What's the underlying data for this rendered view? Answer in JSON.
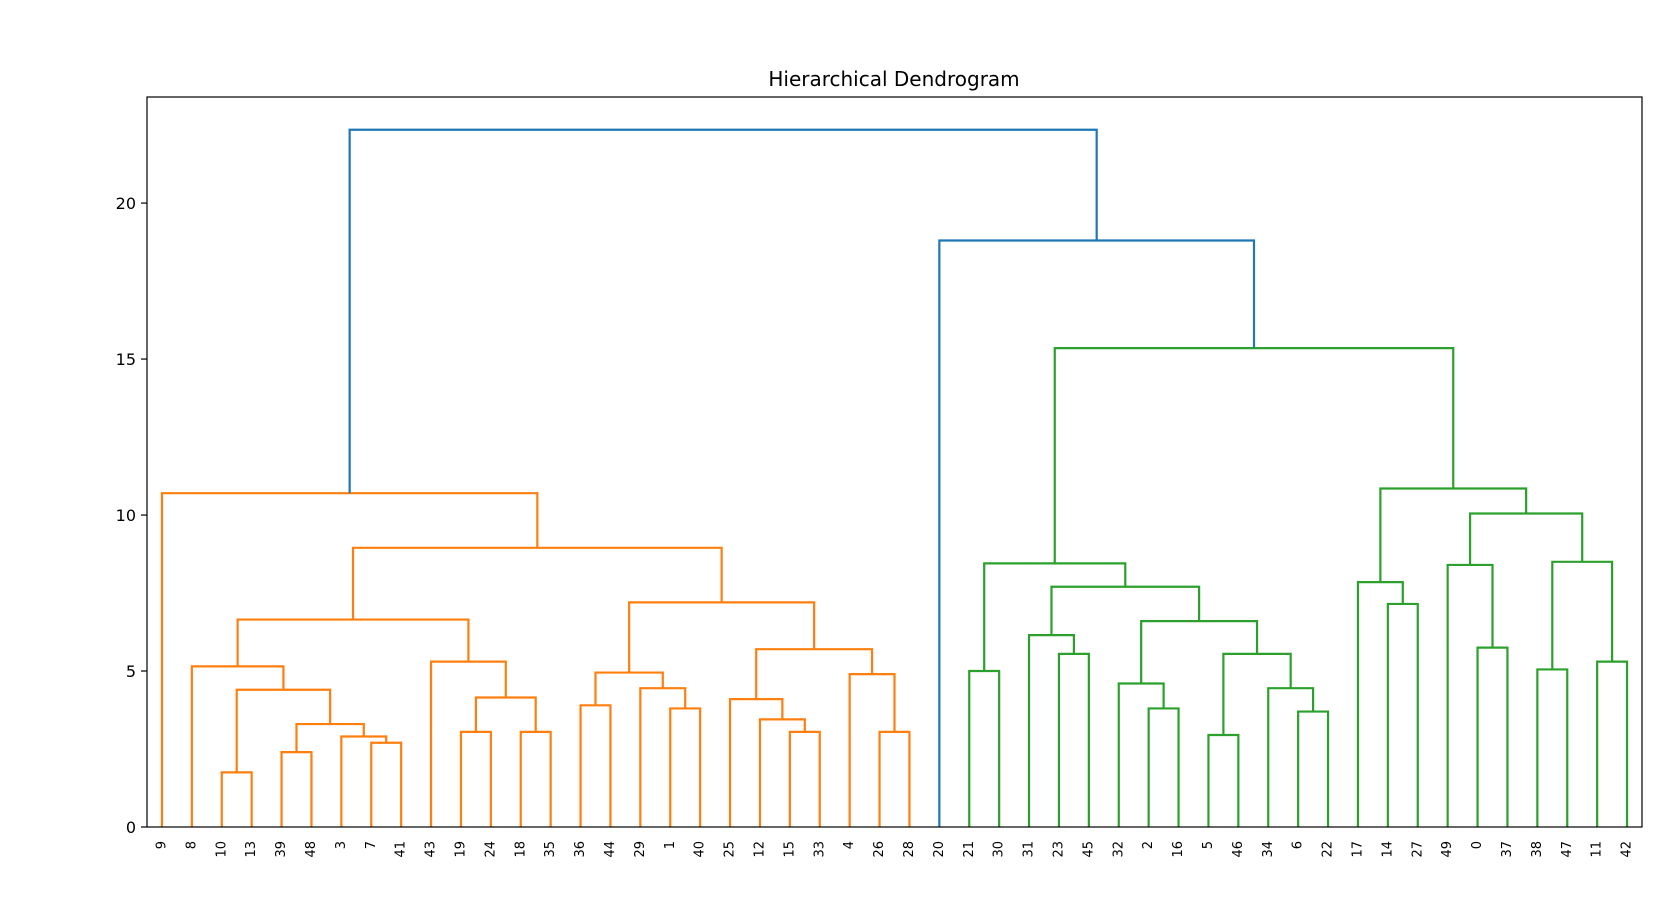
{
  "chart_data": {
    "type": "dendrogram",
    "title": "Hierarchical Dendrogram",
    "xlabel": "",
    "ylabel": "",
    "ylim": [
      0,
      23.4
    ],
    "yticks": [
      0,
      5,
      10,
      15,
      20
    ],
    "grid": false,
    "leaves": [
      "9",
      "8",
      "10",
      "13",
      "39",
      "48",
      "3",
      "7",
      "41",
      "43",
      "19",
      "24",
      "18",
      "35",
      "36",
      "44",
      "29",
      "1",
      "40",
      "25",
      "12",
      "15",
      "33",
      "4",
      "26",
      "28",
      "20",
      "21",
      "30",
      "31",
      "23",
      "45",
      "32",
      "2",
      "16",
      "5",
      "46",
      "34",
      "6",
      "22",
      "17",
      "14",
      "27",
      "49",
      "0",
      "37",
      "38",
      "47",
      "11",
      "42"
    ],
    "colors": {
      "orange": "#ff7f0e",
      "green": "#2ca02c",
      "blue": "#1f77b4"
    },
    "links": [
      {
        "a": "L:10",
        "b": "L:13",
        "h": 1.75,
        "c": "orange"
      },
      {
        "a": "L:39",
        "b": "L:48",
        "h": 2.4,
        "c": "orange"
      },
      {
        "a": "L:7",
        "b": "L:41",
        "h": 2.7,
        "c": "orange"
      },
      {
        "a": "L:3",
        "b": "N:2",
        "h": 2.9,
        "c": "orange"
      },
      {
        "a": "N:1",
        "b": "N:3",
        "h": 3.3,
        "c": "orange"
      },
      {
        "a": "N:0",
        "b": "N:4",
        "h": 4.4,
        "c": "orange"
      },
      {
        "a": "L:8",
        "b": "N:5",
        "h": 5.15,
        "c": "orange"
      },
      {
        "a": "L:19",
        "b": "L:24",
        "h": 3.05,
        "c": "orange"
      },
      {
        "a": "L:18",
        "b": "L:35",
        "h": 3.05,
        "c": "orange"
      },
      {
        "a": "N:7",
        "b": "N:8",
        "h": 4.15,
        "c": "orange"
      },
      {
        "a": "L:43",
        "b": "N:9",
        "h": 5.3,
        "c": "orange"
      },
      {
        "a": "N:6",
        "b": "N:10",
        "h": 6.65,
        "c": "orange"
      },
      {
        "a": "L:36",
        "b": "L:44",
        "h": 3.9,
        "c": "orange"
      },
      {
        "a": "L:1",
        "b": "L:40",
        "h": 3.8,
        "c": "orange"
      },
      {
        "a": "L:29",
        "b": "N:13",
        "h": 4.45,
        "c": "orange"
      },
      {
        "a": "N:12",
        "b": "N:14",
        "h": 4.95,
        "c": "orange"
      },
      {
        "a": "L:15",
        "b": "L:33",
        "h": 3.05,
        "c": "orange"
      },
      {
        "a": "L:12",
        "b": "N:16",
        "h": 3.45,
        "c": "orange"
      },
      {
        "a": "L:25",
        "b": "N:17",
        "h": 4.1,
        "c": "orange"
      },
      {
        "a": "L:26",
        "b": "L:28",
        "h": 3.05,
        "c": "orange"
      },
      {
        "a": "L:4",
        "b": "N:19",
        "h": 4.9,
        "c": "orange"
      },
      {
        "a": "N:18",
        "b": "N:20",
        "h": 5.7,
        "c": "orange"
      },
      {
        "a": "N:15",
        "b": "N:21",
        "h": 7.2,
        "c": "orange"
      },
      {
        "a": "N:11",
        "b": "N:22",
        "h": 8.95,
        "c": "orange"
      },
      {
        "a": "L:9",
        "b": "N:23",
        "h": 10.7,
        "c": "orange"
      },
      {
        "a": "L:21",
        "b": "L:30",
        "h": 5.0,
        "c": "green"
      },
      {
        "a": "L:23",
        "b": "L:45",
        "h": 5.55,
        "c": "green"
      },
      {
        "a": "L:31",
        "b": "N:26",
        "h": 6.15,
        "c": "green"
      },
      {
        "a": "L:2",
        "b": "L:16",
        "h": 3.8,
        "c": "green"
      },
      {
        "a": "L:32",
        "b": "N:28",
        "h": 4.6,
        "c": "green"
      },
      {
        "a": "L:5",
        "b": "L:46",
        "h": 2.95,
        "c": "green"
      },
      {
        "a": "L:6",
        "b": "L:22",
        "h": 3.7,
        "c": "green"
      },
      {
        "a": "L:34",
        "b": "N:31",
        "h": 4.45,
        "c": "green"
      },
      {
        "a": "N:30",
        "b": "N:32",
        "h": 5.55,
        "c": "green"
      },
      {
        "a": "N:29",
        "b": "N:33",
        "h": 6.6,
        "c": "green"
      },
      {
        "a": "N:27",
        "b": "N:34",
        "h": 7.7,
        "c": "green"
      },
      {
        "a": "N:25",
        "b": "N:35",
        "h": 8.45,
        "c": "green"
      },
      {
        "a": "L:14",
        "b": "L:27",
        "h": 7.15,
        "c": "green"
      },
      {
        "a": "L:17",
        "b": "N:37",
        "h": 7.85,
        "c": "green"
      },
      {
        "a": "L:0",
        "b": "L:37",
        "h": 5.75,
        "c": "green"
      },
      {
        "a": "L:49",
        "b": "N:39",
        "h": 8.4,
        "c": "green"
      },
      {
        "a": "L:38",
        "b": "L:47",
        "h": 5.05,
        "c": "green"
      },
      {
        "a": "L:11",
        "b": "L:42",
        "h": 5.3,
        "c": "green"
      },
      {
        "a": "N:41",
        "b": "N:42",
        "h": 8.5,
        "c": "green"
      },
      {
        "a": "N:40",
        "b": "N:43",
        "h": 10.05,
        "c": "green"
      },
      {
        "a": "N:38",
        "b": "N:44",
        "h": 10.85,
        "c": "green"
      },
      {
        "a": "N:36",
        "b": "N:45",
        "h": 15.35,
        "c": "green"
      },
      {
        "a": "L:20",
        "b": "N:46",
        "h": 18.8,
        "c": "blue"
      },
      {
        "a": "N:24",
        "b": "N:47",
        "h": 22.35,
        "c": "blue"
      }
    ]
  }
}
